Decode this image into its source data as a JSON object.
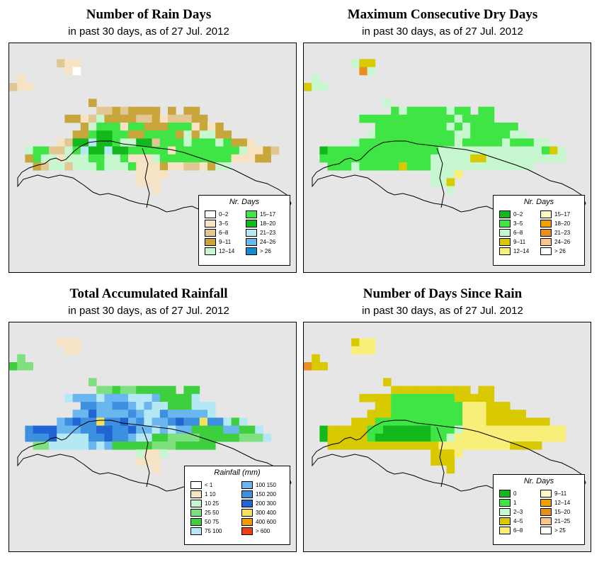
{
  "colors": {
    "background": "#e6e6e6",
    "coast": "#000000"
  },
  "panels": [
    {
      "id": "rain-days",
      "title": "Number of Rain Days",
      "subtitle": "in past 30 days, as of  27 Jul. 2012",
      "legend": {
        "title": "Nr. Days",
        "items": [
          {
            "label": "0–2",
            "color": "#ffffff"
          },
          {
            "label": "3–5",
            "color": "#f5e3c3"
          },
          {
            "label": "6–8",
            "color": "#e3c793"
          },
          {
            "label": "9–11",
            "color": "#c9a63c"
          },
          {
            "label": "12–14",
            "color": "#c6f7cf"
          },
          {
            "label": "15–17",
            "color": "#3fe545"
          },
          {
            "label": "18–20",
            "color": "#12b81c"
          },
          {
            "label": "21–23",
            "color": "#b5e8f5"
          },
          {
            "label": "24–26",
            "color": "#6ab7f0"
          },
          {
            "label": "> 26",
            "color": "#128bd0"
          }
        ]
      },
      "cells": [
        "....................................",
        "....................................",
        "......CBB...........................",
        ".......BA...........................",
        ".B..................................",
        "CBB.................................",
        "....................................",
        "..........D.........................",
        "...........CCDCDDDD.D.DD...........",
        ".......DDBCEDDDDCCDBCCCDD...........",
        ".........DEFFFBFFDDDFFFBDBD.........",
        "........DDFGGFFDDFFFFDEDEEDD........",
        "......BCGGHGGFEEGGCFFFEFFFEFDDB.....",
        "..EFFCCEFHGGHGGFFFFFBFFFFFFFFEBBDC..",
        "..DFEEBEEEFFEEFBBBEFFFFFFFFFBBBDD...",
        "...DCEECEEEFEEEFBBBDBBCCBDEE.......",
        "................BBBB................",
        "................BBB.................",
        "..................B................."
      ]
    },
    {
      "id": "max-dry-days",
      "title": "Maximum Consecutive Dry Days",
      "subtitle": "in past 30 days, as of  27 Jul. 2012",
      "legend": {
        "title": "Nr. Days",
        "items": [
          {
            "label": "0–2",
            "color": "#12b81c"
          },
          {
            "label": "3–5",
            "color": "#3fe545"
          },
          {
            "label": "6–8",
            "color": "#c6f7cf"
          },
          {
            "label": "9–11",
            "color": "#d9c900"
          },
          {
            "label": "12–14",
            "color": "#f8ee7a"
          },
          {
            "label": "15–17",
            "color": "#fdfac6"
          },
          {
            "label": "18–20",
            "color": "#f0a000"
          },
          {
            "label": "21–23",
            "color": "#e8901e"
          },
          {
            "label": "24–26",
            "color": "#f8c58f"
          },
          {
            "label": "> 26",
            "color": "#ffffff"
          }
        ]
      },
      "cells": [
        "....................................",
        "....................................",
        "......CDD...........................",
        ".......HC...........................",
        ".C..................................",
        "DCC.................................",
        "....................................",
        "..........C.........................",
        "...........BCBBBBBCBB.BB...........",
        ".......BBBBBBBBBBBBCBBBB...........",
        ".........BBBBBBBBBCBCBBBBBB.........",
        "........CBBBBBBBBBBCCBBBBBCC........",
        "......CBBBBBBBBBBBBCBBBBBCBBBCC.....",
        "..ABBBBBBBBBBBBBBCCCCCCCCCCCCCBDC...",
        "..BBBBBBBBBBBBBBCCCCCDDCCCCCCCCCC...",
        "...BBBCBBBBBDBBBCCCCCCCCCCCCC.......",
        "................CCCE................",
        "................CCD.................",
        "..................C................."
      ]
    },
    {
      "id": "total-rainfall",
      "title": "Total Accumulated Rainfall",
      "subtitle": "in past 30 days, as of  27 Jul. 2012",
      "legend": {
        "title": "Rainfall (mm)",
        "items": [
          {
            "label": "< 1",
            "color": "#ffffff"
          },
          {
            "label": "1    10",
            "color": "#f5e3c3"
          },
          {
            "label": "10    25",
            "color": "#c6f7cf"
          },
          {
            "label": "25    50",
            "color": "#7fe07f"
          },
          {
            "label": "50    75",
            "color": "#3ecf3e"
          },
          {
            "label": "75   100",
            "color": "#b5e8f5"
          },
          {
            "label": "100   150",
            "color": "#6ab7f0"
          },
          {
            "label": "150   200",
            "color": "#3d8fe0"
          },
          {
            "label": "200   300",
            "color": "#2164d4"
          },
          {
            "label": "300   400",
            "color": "#f6e35a"
          },
          {
            "label": "400   600",
            "color": "#f39a00"
          },
          {
            "label": "> 600",
            "color": "#f03c14"
          }
        ]
      },
      "cells": [
        "....................................",
        "....................................",
        "......BBB...........................",
        ".......BB...........................",
        ".D..................................",
        "EDD.................................",
        "....................................",
        "..........D.........................",
        "...........DDEDDEEEEE.EE...........",
        ".......FGGGFGGGFFFGEEEEF...........",
        ".........HHGGHHGFGFFEEEFFF.........",
        "........GGIGGGGHGFFHGGGGGF.........",
        "......GHIHHJHHIGHFGGHIHHJHHFEF.....",
        "..HIIIGGGHHIIHHIGGFGFGGEEEEGGEEF...",
        "..HHHIFFFFHHIHHGFFEEDDDDEEEEEDDDF...",
        "...DDFFFFFGFGEEEEEDDDEEEEE.........",
        "................CBBC................",
        "................BBB.................",
        "..................B................."
      ]
    },
    {
      "id": "days-since-rain",
      "title": "Number of Days Since Rain",
      "subtitle": "in past 30 days, as of  27 Jul. 2012",
      "legend": {
        "title": "Nr. Days",
        "items": [
          {
            "label": "0",
            "color": "#12b81c"
          },
          {
            "label": "1",
            "color": "#3fe545"
          },
          {
            "label": "2–3",
            "color": "#c6f7cf"
          },
          {
            "label": "4–5",
            "color": "#d9c900"
          },
          {
            "label": "6–8",
            "color": "#f8ee7a"
          },
          {
            "label": "9–11",
            "color": "#fdfac6"
          },
          {
            "label": "12–14",
            "color": "#f0a000"
          },
          {
            "label": "15–20",
            "color": "#e8901e"
          },
          {
            "label": "21–25",
            "color": "#f8c58f"
          },
          {
            "label": "> 25",
            "color": "#ffffff"
          }
        ]
      },
      "cells": [
        "....................................",
        "....................................",
        "......DEE...........................",
        "......EEE...........................",
        ".D..................................",
        "HDD.................................",
        "....................................",
        "..........D.........................",
        "...........DDDDDDDDDD.DD...........",
        ".......DDDDBBBBBBBBDDDDD...........",
        ".........DDBBBBBBBBBEEEDDD.........",
        "........DDDBBBBBBBBBEEEDDDDD........",
        "......DDDBBBBBBBBBBBEEEDDDDDDDD.....",
        "..ADDDDDBBAAAAAABBBCEEEEEEEEEEEEE...",
        "..ADDDDDBAAAAAAABBCEEEEEEEEEEEEEE...",
        "...DDDDDDDDDDDDDDEEEEEEEEEDDDD.......",
        "................DDDE................",
        "................DDD.................",
        "..................D................."
      ]
    }
  ]
}
